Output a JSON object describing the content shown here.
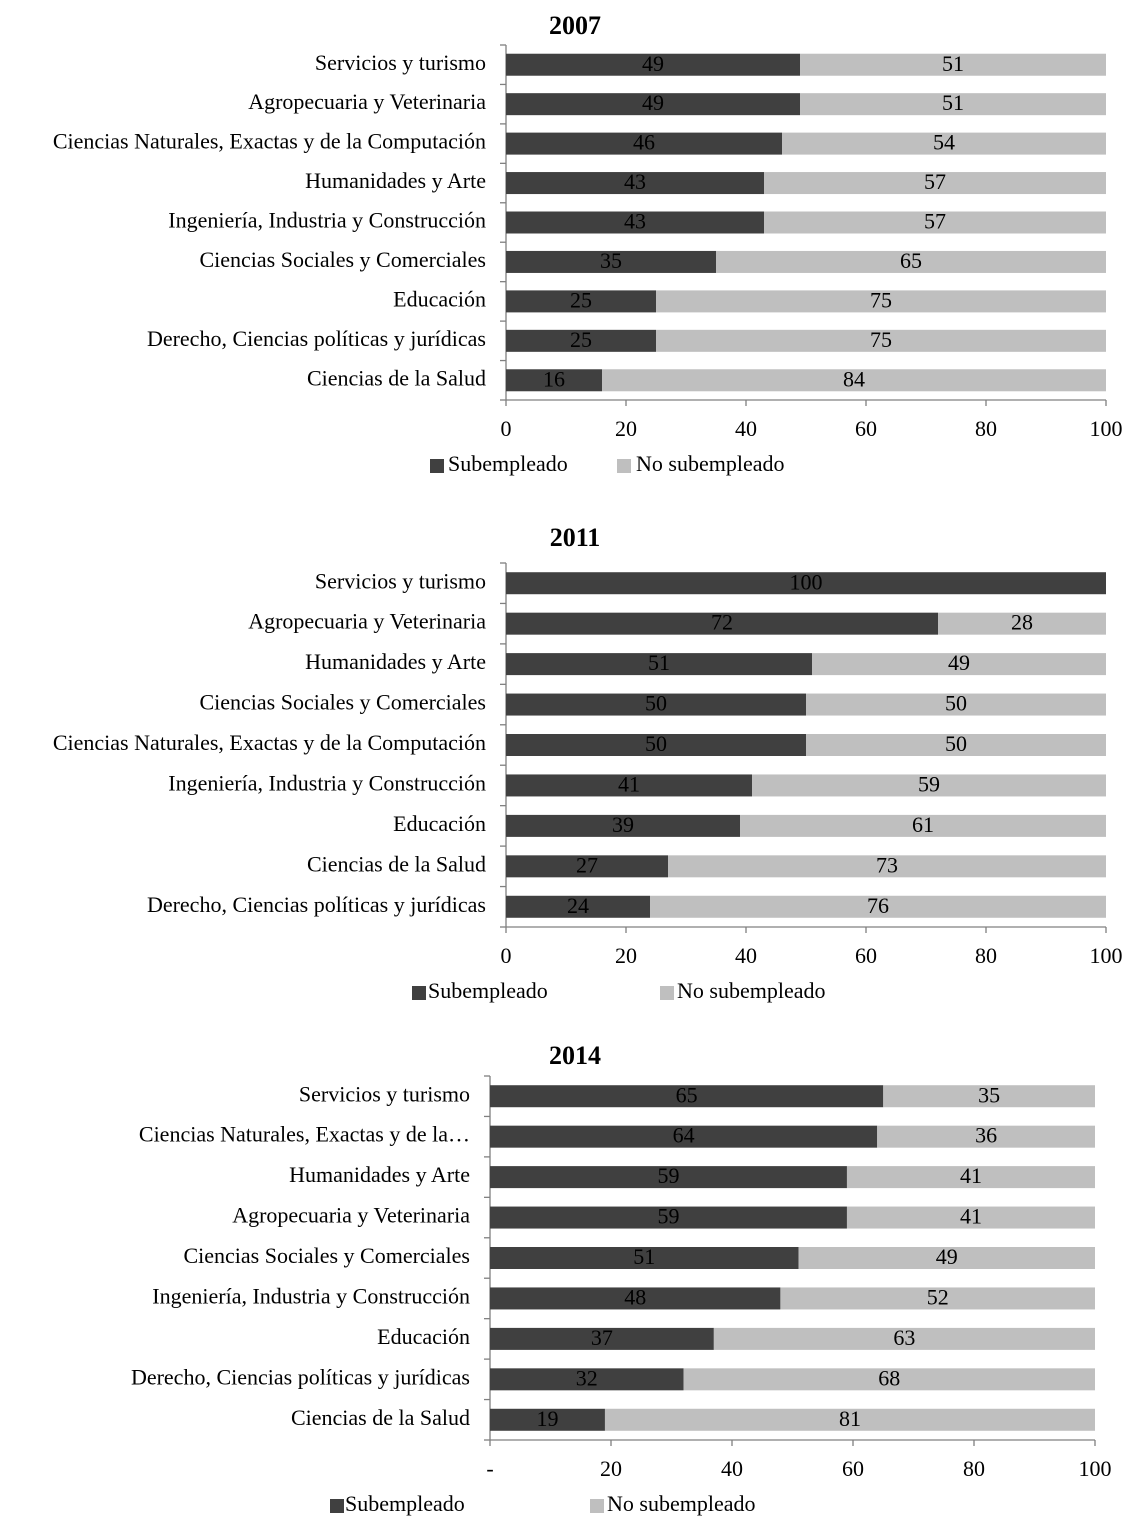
{
  "chart_data": [
    {
      "type": "bar",
      "orientation": "horizontal",
      "stacked": true,
      "title": "2007",
      "categories": [
        "Servicios y turismo",
        "Agropecuaria y Veterinaria",
        "Ciencias Naturales, Exactas y de la Computación",
        "Humanidades y Arte",
        "Ingeniería, Industria y Construcción",
        "Ciencias Sociales y Comerciales",
        "Educación",
        "Derecho, Ciencias políticas y jurídicas",
        "Ciencias de la Salud"
      ],
      "series": [
        {
          "name": "Subempleado",
          "color": "#404040",
          "label_color": "#ffffff",
          "values": [
            49,
            49,
            46,
            43,
            43,
            35,
            25,
            25,
            16
          ]
        },
        {
          "name": "No subempleado",
          "color": "#bfbfbf",
          "label_color": "#000000",
          "values": [
            51,
            51,
            54,
            57,
            57,
            65,
            75,
            75,
            84
          ]
        }
      ],
      "xlim": [
        0,
        100
      ],
      "xticks": [
        0,
        20,
        40,
        60,
        80,
        100
      ],
      "grid": false,
      "legend": "bottom"
    },
    {
      "type": "bar",
      "orientation": "horizontal",
      "stacked": true,
      "title": "2011",
      "categories": [
        "Servicios y turismo",
        "Agropecuaria y Veterinaria",
        "Humanidades y Arte",
        "Ciencias Sociales y Comerciales",
        "Ciencias Naturales, Exactas y de la Computación",
        "Ingeniería, Industria y Construcción",
        "Educación",
        "Ciencias de la Salud",
        "Derecho, Ciencias políticas y jurídicas"
      ],
      "series": [
        {
          "name": "Subempleado",
          "color": "#404040",
          "label_color": "#ffffff",
          "values": [
            100,
            72,
            51,
            50,
            50,
            41,
            39,
            27,
            24
          ]
        },
        {
          "name": "No subempleado",
          "color": "#bfbfbf",
          "label_color": "#000000",
          "values": [
            0,
            28,
            49,
            50,
            50,
            59,
            61,
            73,
            76
          ]
        }
      ],
      "xlim": [
        0,
        100
      ],
      "xticks": [
        0,
        20,
        40,
        60,
        80,
        100
      ],
      "grid": false,
      "legend": "bottom"
    },
    {
      "type": "bar",
      "orientation": "horizontal",
      "stacked": true,
      "title": "2014",
      "categories": [
        "Servicios y turismo",
        "Ciencias Naturales, Exactas y de la…",
        "Humanidades y Arte",
        "Agropecuaria y Veterinaria",
        "Ciencias Sociales y Comerciales",
        "Ingeniería, Industria y Construcción",
        "Educación",
        "Derecho, Ciencias políticas y jurídicas",
        "Ciencias de la Salud"
      ],
      "series": [
        {
          "name": "Subempleado",
          "color": "#404040",
          "label_color": "#ffffff",
          "values": [
            65,
            64,
            59,
            59,
            51,
            48,
            37,
            32,
            19
          ]
        },
        {
          "name": "No subempleado",
          "color": "#bfbfbf",
          "label_color": "#000000",
          "values": [
            35,
            36,
            41,
            41,
            49,
            52,
            63,
            68,
            81
          ]
        }
      ],
      "xlim": [
        0,
        100
      ],
      "xticks": [
        {
          "value": 0,
          "label": "-"
        },
        20,
        40,
        60,
        80,
        100
      ],
      "grid": false,
      "legend": "bottom"
    }
  ]
}
